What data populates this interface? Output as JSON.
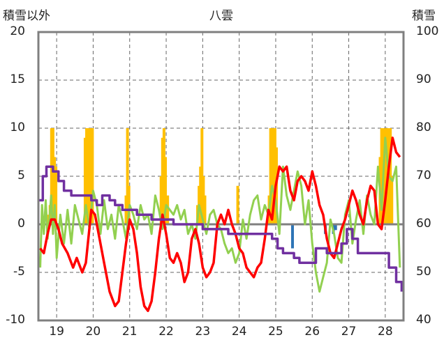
{
  "chart_data": {
    "type": "line",
    "title": "八雲",
    "left_axis": {
      "label": "積雪以外",
      "ticks": [
        20,
        15,
        10,
        5,
        0,
        -5,
        -10
      ],
      "ylim": [
        -10,
        20
      ]
    },
    "right_axis": {
      "label": "積雪",
      "ticks": [
        100,
        90,
        80,
        70,
        60,
        50,
        40
      ],
      "ylim": [
        40,
        100
      ]
    },
    "x_axis": {
      "ticks": [
        "19",
        "20",
        "21",
        "22",
        "23",
        "24",
        "25",
        "26",
        "27",
        "28"
      ],
      "xlim": [
        18.5,
        28.5
      ]
    },
    "grid": "vertical dashed at day boundaries",
    "colors": {
      "precip": "#ffc000",
      "negative_bar": "#2e75b6",
      "temp": "#ff0000",
      "wind": "#92d050",
      "snow": "#7030a0",
      "frame": "#7f7f7f"
    },
    "series": [
      {
        "style": "bars",
        "axis": "left",
        "color": "#ffc000",
        "values": [
          [
            18.78,
            1.0
          ],
          [
            18.82,
            2.0
          ],
          [
            18.86,
            10.0
          ],
          [
            18.9,
            10.0
          ],
          [
            18.94,
            7.0
          ],
          [
            18.98,
            6.0
          ],
          [
            19.78,
            9.0
          ],
          [
            19.82,
            10.0
          ],
          [
            19.86,
            10.0
          ],
          [
            19.9,
            10.0
          ],
          [
            19.94,
            10.0
          ],
          [
            19.98,
            10.0
          ],
          [
            20.9,
            3.0
          ],
          [
            20.94,
            10.0
          ],
          [
            20.98,
            4.0
          ],
          [
            21.86,
            5.0
          ],
          [
            21.9,
            9.0
          ],
          [
            21.94,
            10.0
          ],
          [
            21.98,
            7.0
          ],
          [
            22.04,
            3.0
          ],
          [
            22.86,
            2.0
          ],
          [
            22.9,
            4.0
          ],
          [
            22.94,
            6.0
          ],
          [
            22.98,
            10.0
          ],
          [
            23.02,
            5.0
          ],
          [
            23.06,
            3.0
          ],
          [
            23.96,
            4.0
          ],
          [
            24.82,
            3.0
          ],
          [
            24.86,
            10.0
          ],
          [
            24.9,
            10.0
          ],
          [
            24.94,
            10.0
          ],
          [
            24.98,
            10.0
          ],
          [
            25.02,
            8.0
          ],
          [
            27.86,
            7.0
          ],
          [
            27.9,
            10.0
          ],
          [
            27.94,
            10.0
          ],
          [
            27.98,
            10.0
          ],
          [
            28.02,
            10.0
          ],
          [
            28.06,
            10.0
          ],
          [
            28.1,
            10.0
          ],
          [
            28.14,
            10.0
          ],
          [
            28.18,
            5.0
          ]
        ]
      },
      {
        "style": "bars",
        "axis": "left",
        "color": "#2e75b6",
        "values": [
          [
            25.46,
            -2.5
          ],
          [
            26.36,
            -1.0
          ],
          [
            26.58,
            -1.0
          ],
          [
            26.64,
            -0.6
          ]
        ]
      },
      {
        "style": "line",
        "axis": "left",
        "color": "#ff0000",
        "x": [
          18.55,
          18.65,
          18.75,
          18.85,
          18.95,
          19.05,
          19.15,
          19.3,
          19.45,
          19.55,
          19.7,
          19.8,
          19.95,
          20.05,
          20.15,
          20.3,
          20.45,
          20.6,
          20.7,
          20.8,
          20.9,
          21.0,
          21.1,
          21.2,
          21.3,
          21.4,
          21.5,
          21.6,
          21.7,
          21.8,
          21.9,
          22.0,
          22.1,
          22.2,
          22.3,
          22.4,
          22.5,
          22.6,
          22.7,
          22.8,
          22.9,
          23.0,
          23.1,
          23.2,
          23.3,
          23.4,
          23.5,
          23.6,
          23.7,
          23.8,
          23.9,
          24.0,
          24.1,
          24.2,
          24.3,
          24.4,
          24.5,
          24.6,
          24.7,
          24.8,
          24.9,
          25.0,
          25.1,
          25.2,
          25.3,
          25.4,
          25.5,
          25.6,
          25.7,
          25.8,
          25.9,
          26.0,
          26.1,
          26.2,
          26.3,
          26.4,
          26.5,
          26.6,
          26.7,
          26.8,
          26.9,
          27.0,
          27.1,
          27.2,
          27.3,
          27.4,
          27.5,
          27.6,
          27.7,
          27.8,
          27.9,
          28.0,
          28.1,
          28.2,
          28.3,
          28.4
        ],
        "y": [
          -2.5,
          -3.0,
          -1.0,
          0.5,
          0.5,
          -0.5,
          -2.0,
          -3.0,
          -4.5,
          -3.5,
          -5.0,
          -4.0,
          1.5,
          1.0,
          -1.0,
          -4.0,
          -7.0,
          -8.5,
          -8.0,
          -5.0,
          -2.0,
          0.5,
          -0.5,
          -3.0,
          -6.5,
          -8.5,
          -9.0,
          -8.0,
          -5.0,
          -1.5,
          1.0,
          -1.0,
          -3.5,
          -4.0,
          -3.0,
          -4.0,
          -6.0,
          -5.0,
          -1.5,
          -0.5,
          -2.0,
          -4.5,
          -5.5,
          -5.0,
          -4.0,
          0.0,
          1.0,
          0.0,
          1.5,
          0.0,
          -1.0,
          -2.5,
          -3.0,
          -4.5,
          -5.0,
          -5.5,
          -4.5,
          -4.0,
          -1.5,
          1.5,
          0.5,
          4.0,
          6.0,
          5.5,
          6.0,
          3.5,
          2.5,
          4.5,
          5.0,
          4.5,
          3.5,
          5.5,
          4.0,
          2.0,
          1.0,
          -1.5,
          -3.0,
          -3.5,
          -2.0,
          -0.5,
          0.5,
          2.0,
          3.5,
          2.5,
          1.0,
          0.0,
          2.5,
          4.0,
          3.5,
          0.0,
          -0.5,
          2.5,
          6.0,
          9.0,
          7.5,
          7.0
        ]
      },
      {
        "style": "line",
        "axis": "left",
        "color": "#92d050",
        "x": [
          18.55,
          18.6,
          18.65,
          18.7,
          18.75,
          18.8,
          18.85,
          18.9,
          18.95,
          19.0,
          19.1,
          19.2,
          19.3,
          19.4,
          19.5,
          19.6,
          19.7,
          19.8,
          19.9,
          20.0,
          20.1,
          20.2,
          20.3,
          20.4,
          20.5,
          20.6,
          20.7,
          20.8,
          20.9,
          21.0,
          21.1,
          21.2,
          21.3,
          21.4,
          21.5,
          21.6,
          21.7,
          21.8,
          21.9,
          22.0,
          22.1,
          22.2,
          22.3,
          22.4,
          22.5,
          22.6,
          22.7,
          22.8,
          22.9,
          23.0,
          23.1,
          23.2,
          23.3,
          23.4,
          23.5,
          23.6,
          23.7,
          23.8,
          23.9,
          24.0,
          24.1,
          24.2,
          24.3,
          24.4,
          24.5,
          24.6,
          24.7,
          24.8,
          24.9,
          25.0,
          25.1,
          25.2,
          25.3,
          25.4,
          25.5,
          25.6,
          25.7,
          25.8,
          25.9,
          26.0,
          26.1,
          26.2,
          26.3,
          26.4,
          26.5,
          26.6,
          26.7,
          26.8,
          26.9,
          27.0,
          27.1,
          27.2,
          27.3,
          27.4,
          27.5,
          27.6,
          27.7,
          27.8,
          27.9,
          28.0,
          28.1,
          28.2,
          28.3,
          28.4
        ],
        "y": [
          -4.5,
          2.0,
          -1.0,
          2.5,
          -1.5,
          0.5,
          3.0,
          -1.0,
          2.0,
          -3.5,
          1.0,
          -2.0,
          1.5,
          -2.0,
          2.0,
          0.5,
          -1.0,
          2.0,
          -0.5,
          3.5,
          2.0,
          -1.0,
          2.5,
          -0.5,
          1.0,
          -1.5,
          2.0,
          0.5,
          -1.5,
          2.0,
          1.0,
          -0.5,
          2.0,
          0.5,
          1.0,
          -1.0,
          3.0,
          1.5,
          -0.5,
          2.0,
          1.5,
          1.0,
          2.0,
          0.5,
          1.5,
          -1.0,
          0.0,
          -1.5,
          2.0,
          0.5,
          -1.0,
          1.0,
          1.5,
          0.0,
          -0.5,
          -2.0,
          -3.0,
          -2.5,
          -4.0,
          -3.0,
          0.5,
          -1.5,
          1.0,
          2.5,
          3.0,
          0.5,
          2.0,
          1.0,
          4.0,
          2.5,
          -1.0,
          6.0,
          3.0,
          1.5,
          3.5,
          5.5,
          4.0,
          0.0,
          2.5,
          -2.0,
          -5.0,
          -7.0,
          -5.5,
          -4.0,
          0.5,
          -1.0,
          -3.5,
          -4.0,
          1.0,
          2.5,
          -2.0,
          0.5,
          2.5,
          -1.0,
          3.0,
          1.0,
          0.0,
          6.0,
          1.5,
          9.0,
          5.0,
          4.5,
          6.0,
          -4.5
        ]
      },
      {
        "style": "step",
        "axis": "right",
        "color": "#7030a0",
        "x": [
          18.5,
          18.62,
          18.72,
          18.9,
          19.05,
          19.2,
          19.4,
          19.6,
          19.8,
          19.95,
          20.1,
          20.25,
          20.45,
          20.6,
          20.8,
          21.0,
          21.2,
          21.35,
          21.6,
          21.8,
          22.0,
          22.2,
          22.6,
          22.85,
          23.0,
          23.3,
          23.7,
          24.0,
          24.3,
          24.6,
          24.9,
          25.05,
          25.2,
          25.5,
          25.65,
          25.8,
          26.1,
          26.4,
          26.6,
          26.8,
          26.95,
          27.1,
          27.25,
          27.6,
          27.9,
          28.0,
          28.1,
          28.3,
          28.45
        ],
        "y": [
          65,
          70,
          72,
          71,
          69,
          67,
          66,
          66,
          66,
          65,
          64,
          66,
          65,
          64,
          63,
          63,
          62,
          62,
          61,
          61,
          61,
          60,
          60,
          60,
          59,
          59,
          58,
          58,
          58,
          58,
          57,
          55,
          54,
          53,
          52,
          52,
          55,
          54,
          54,
          56,
          59,
          57,
          54,
          54,
          54,
          54,
          51,
          48,
          46
        ]
      }
    ]
  }
}
